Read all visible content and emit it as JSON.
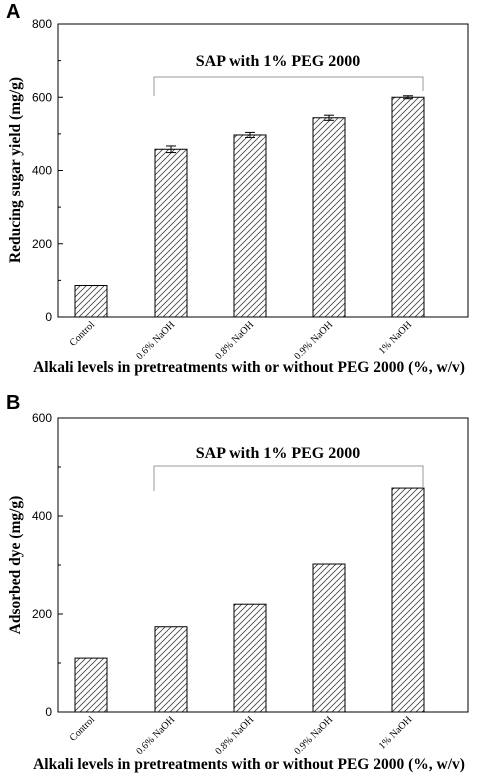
{
  "chart_data": [
    {
      "panel": "A",
      "type": "bar",
      "categories": [
        "Control",
        "0.6% NaOH",
        "0.8% NaOH",
        "0.9% NaOH",
        "1% NaOH"
      ],
      "values": [
        86,
        458,
        497,
        544,
        600
      ],
      "errors": [
        0,
        9,
        7,
        7,
        4
      ],
      "ylabel": "Reducing sugar yield (mg/g)",
      "xlabel": "Alkali levels in pretreatments with or without PEG 2000 (%, w/v)",
      "ylim": [
        0,
        800
      ],
      "yticks": [
        0,
        200,
        400,
        600,
        800
      ],
      "annotation": "SAP with 1% PEG 2000",
      "bar_pattern": "diagonal-hatch",
      "grid": false
    },
    {
      "panel": "B",
      "type": "bar",
      "categories": [
        "Control",
        "0.6% NaOH",
        "0.8% NaOH",
        "0.9% NaOH",
        "1% NaOH"
      ],
      "values": [
        110,
        174,
        220,
        302,
        457
      ],
      "ylabel": "Adsorbed dye (mg/g)",
      "xlabel": "Alkali levels in pretreatments with or without PEG 2000 (%, w/v)",
      "ylim": [
        0,
        600
      ],
      "yticks": [
        0,
        200,
        400,
        600
      ],
      "annotation": "SAP with 1% PEG 2000",
      "bar_pattern": "diagonal-hatch",
      "grid": false
    }
  ]
}
